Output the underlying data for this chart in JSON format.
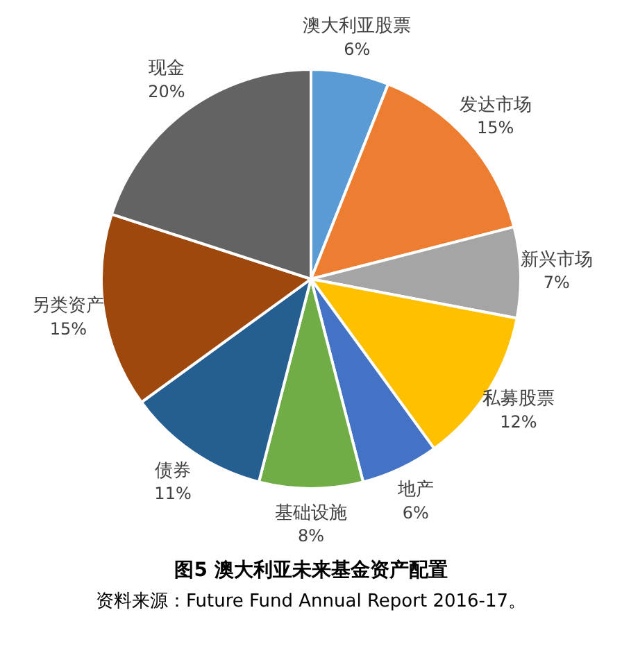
{
  "chart_data": {
    "type": "pie",
    "title": "图5  澳大利亚未来基金资产配置",
    "categories": [
      "澳大利亚股票",
      "发达市场",
      "新兴市场",
      "私募股票",
      "地产",
      "基础设施",
      "债券",
      "另类资产",
      "现金"
    ],
    "values": [
      6,
      15,
      7,
      12,
      6,
      8,
      11,
      15,
      20
    ],
    "colors": [
      "#5b9bd5",
      "#ed7d31",
      "#a5a5a5",
      "#ffc000",
      "#4472c4",
      "#70ad47",
      "#255e91",
      "#9e480e",
      "#636363"
    ],
    "value_labels": [
      "6%",
      "15%",
      "7%",
      "12%",
      "6%",
      "8%",
      "11%",
      "15%",
      "20%"
    ],
    "legend": false,
    "annotations": [
      "资料来源：Future Fund Annual Report 2016-17。"
    ]
  }
}
